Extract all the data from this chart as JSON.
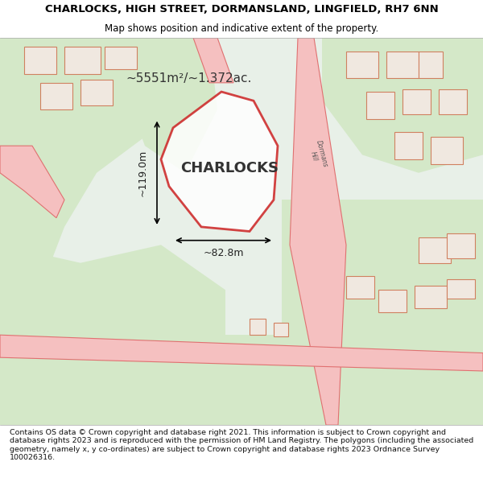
{
  "title_line1": "CHARLOCKS, HIGH STREET, DORMANSLAND, LINGFIELD, RH7 6NN",
  "title_line2": "Map shows position and indicative extent of the property.",
  "footer_text": "Contains OS data © Crown copyright and database right 2021. This information is subject to Crown copyright and database rights 2023 and is reproduced with the permission of HM Land Registry. The polygons (including the associated geometry, namely x, y co-ordinates) are subject to Crown copyright and database rights 2023 Ordnance Survey 100026316.",
  "area_label": "~5551m²/~1.372ac.",
  "property_name": "CHARLOCKS",
  "dim_horizontal": "~82.8m",
  "dim_vertical": "~119.0m",
  "background_color": "#e8f0e8",
  "map_bg": "#e8f0e8",
  "road_color": "#f5c8c8",
  "road_outline": "#e88080",
  "building_fill": "#f0e8e0",
  "building_outline": "#c8a080",
  "property_fill": "none",
  "property_outline": "#cc2222",
  "road_line_color": "#e87878",
  "figsize": [
    6.0,
    6.25
  ],
  "dpi": 100
}
